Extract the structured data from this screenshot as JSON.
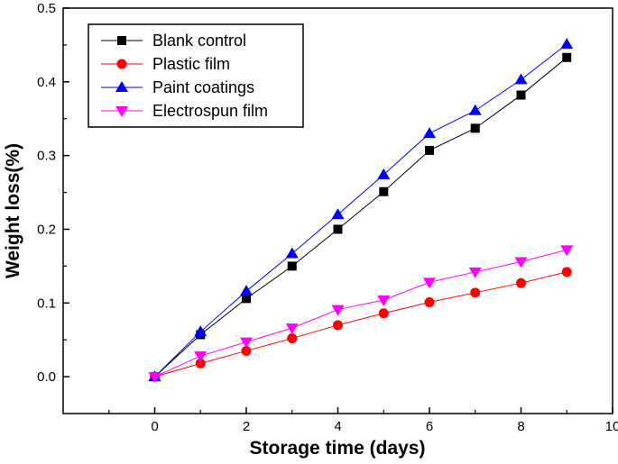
{
  "chart_data": {
    "type": "line",
    "xlabel": "Storage time (days)",
    "ylabel": "Weight loss(%)",
    "xlim": [
      -2,
      10
    ],
    "ylim": [
      -0.05,
      0.5
    ],
    "xticks": [
      0,
      2,
      4,
      6,
      8,
      10
    ],
    "yticks": [
      0.0,
      0.1,
      0.2,
      0.3,
      0.4,
      0.5
    ],
    "xtick_labels": [
      "0",
      "2",
      "4",
      "6",
      "8",
      "10"
    ],
    "ytick_labels": [
      "0.0",
      "0.1",
      "0.2",
      "0.3",
      "0.4",
      "0.5"
    ],
    "x": [
      0,
      1,
      2,
      3,
      4,
      5,
      6,
      7,
      8,
      9
    ],
    "legend_position": "top-left",
    "grid": false,
    "series": [
      {
        "name": "Blank control",
        "color": "#000000",
        "marker": "square",
        "values": [
          0.0,
          0.057,
          0.106,
          0.15,
          0.2,
          0.251,
          0.307,
          0.337,
          0.382,
          0.433
        ]
      },
      {
        "name": "Plastic film",
        "color": "#ff0000",
        "marker": "circle",
        "values": [
          0.0,
          0.018,
          0.035,
          0.052,
          0.07,
          0.086,
          0.101,
          0.114,
          0.127,
          0.142
        ]
      },
      {
        "name": "Paint coatings",
        "color": "#0000ff",
        "marker": "triangle-up",
        "values": [
          0.0,
          0.061,
          0.116,
          0.167,
          0.22,
          0.274,
          0.33,
          0.361,
          0.403,
          0.451
        ]
      },
      {
        "name": "Electrospun film",
        "color": "#ff00ff",
        "marker": "triangle-down",
        "values": [
          0.0,
          0.028,
          0.047,
          0.066,
          0.091,
          0.104,
          0.128,
          0.142,
          0.156,
          0.172
        ]
      }
    ]
  }
}
